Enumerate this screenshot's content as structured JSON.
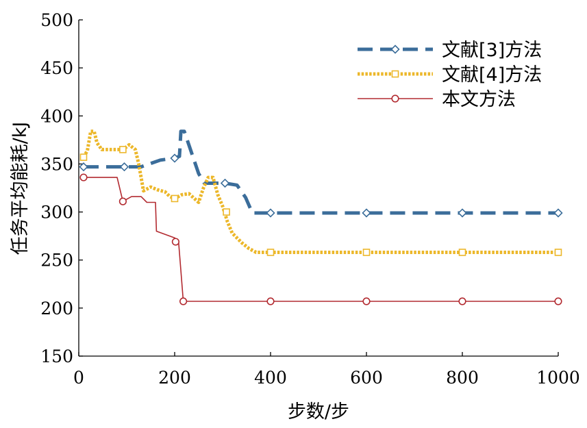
{
  "chart_data": {
    "type": "line",
    "xlabel": "步数/步",
    "ylabel": "任务平均能耗/kJ",
    "xlim": [
      0,
      1000
    ],
    "ylim": [
      150,
      500
    ],
    "xticks": [
      "0",
      "200",
      "400",
      "600",
      "800",
      "1000"
    ],
    "yticks": [
      "150",
      "200",
      "250",
      "300",
      "350",
      "400",
      "450",
      "500"
    ],
    "grid": false,
    "legend_position": "top-right",
    "series": [
      {
        "name": "文献[3]方法",
        "color": "#3b6d9a",
        "style": "dashed",
        "marker": "diamond",
        "points": [
          [
            10,
            347
          ],
          [
            90,
            347
          ],
          [
            130,
            347
          ],
          [
            170,
            354
          ],
          [
            200,
            356
          ],
          [
            210,
            358
          ],
          [
            213,
            384
          ],
          [
            220,
            384
          ],
          [
            235,
            362
          ],
          [
            250,
            340
          ],
          [
            262,
            330
          ],
          [
            305,
            330
          ],
          [
            330,
            328
          ],
          [
            348,
            315
          ],
          [
            362,
            299
          ],
          [
            400,
            299
          ],
          [
            600,
            299
          ],
          [
            800,
            299
          ],
          [
            1000,
            299
          ]
        ],
        "marker_points": [
          [
            10,
            347
          ],
          [
            95,
            347
          ],
          [
            200,
            356
          ],
          [
            305,
            330
          ],
          [
            400,
            299
          ],
          [
            600,
            299
          ],
          [
            800,
            299
          ],
          [
            1000,
            299
          ]
        ]
      },
      {
        "name": "文献[4]方法",
        "color": "#ecb72a",
        "style": "dotted",
        "marker": "square",
        "points": [
          [
            10,
            357
          ],
          [
            18,
            364
          ],
          [
            25,
            384
          ],
          [
            32,
            384
          ],
          [
            38,
            372
          ],
          [
            48,
            365
          ],
          [
            65,
            365
          ],
          [
            85,
            365
          ],
          [
            95,
            366
          ],
          [
            105,
            370
          ],
          [
            118,
            365
          ],
          [
            125,
            350
          ],
          [
            135,
            322
          ],
          [
            150,
            326
          ],
          [
            165,
            323
          ],
          [
            180,
            321
          ],
          [
            190,
            316
          ],
          [
            200,
            314
          ],
          [
            215,
            318
          ],
          [
            230,
            319
          ],
          [
            250,
            310
          ],
          [
            260,
            325
          ],
          [
            270,
            336
          ],
          [
            280,
            336
          ],
          [
            290,
            318
          ],
          [
            300,
            306
          ],
          [
            310,
            290
          ],
          [
            320,
            278
          ],
          [
            340,
            268
          ],
          [
            355,
            262
          ],
          [
            370,
            258
          ],
          [
            400,
            258
          ],
          [
            600,
            258
          ],
          [
            800,
            258
          ],
          [
            1000,
            258
          ]
        ],
        "marker_points": [
          [
            10,
            357
          ],
          [
            92,
            365
          ],
          [
            200,
            314
          ],
          [
            308,
            300
          ],
          [
            400,
            258
          ],
          [
            600,
            258
          ],
          [
            800,
            258
          ],
          [
            1000,
            258
          ]
        ]
      },
      {
        "name": "本文方法",
        "color": "#b22a30",
        "style": "solid",
        "marker": "circle",
        "points": [
          [
            10,
            336
          ],
          [
            80,
            336
          ],
          [
            92,
            311
          ],
          [
            110,
            316
          ],
          [
            130,
            316
          ],
          [
            142,
            310
          ],
          [
            160,
            310
          ],
          [
            162,
            280
          ],
          [
            200,
            273
          ],
          [
            208,
            270
          ],
          [
            212,
            245
          ],
          [
            218,
            207
          ],
          [
            400,
            207
          ],
          [
            600,
            207
          ],
          [
            800,
            207
          ],
          [
            1000,
            207
          ]
        ],
        "marker_points": [
          [
            10,
            336
          ],
          [
            92,
            311
          ],
          [
            202,
            269
          ],
          [
            218,
            207
          ],
          [
            400,
            207
          ],
          [
            600,
            207
          ],
          [
            800,
            207
          ],
          [
            1000,
            207
          ]
        ]
      }
    ]
  }
}
